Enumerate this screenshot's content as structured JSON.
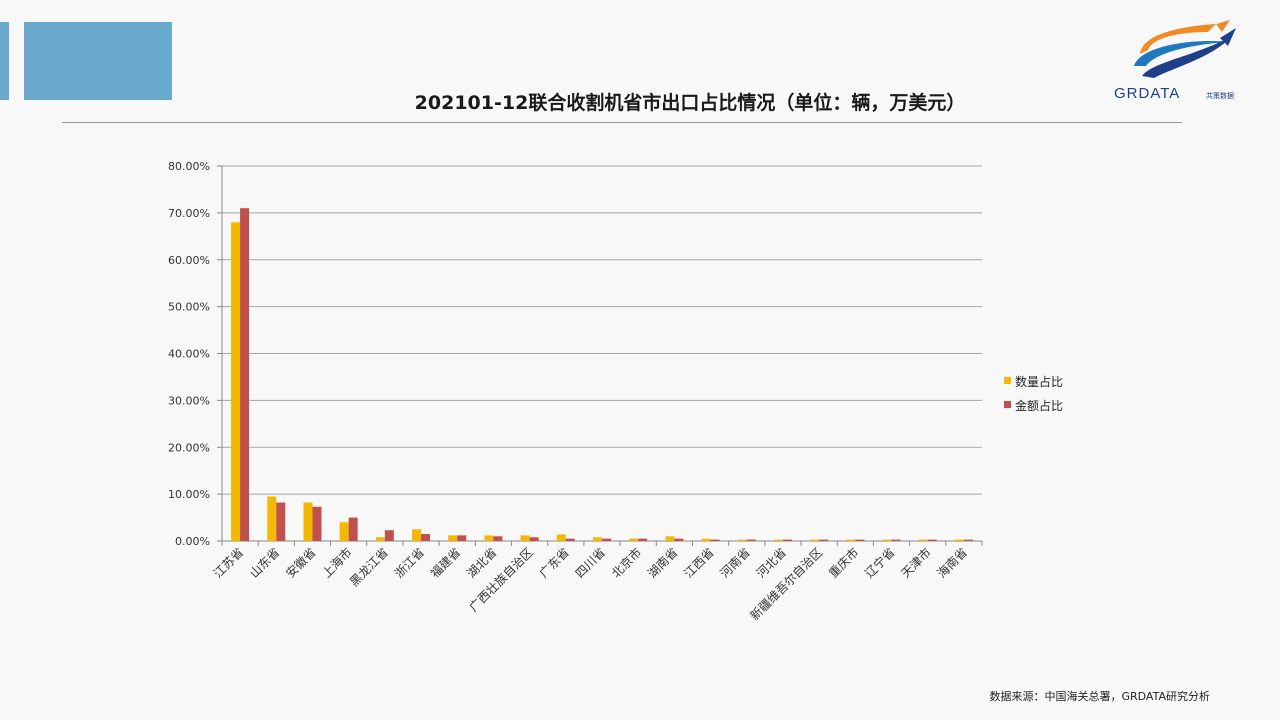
{
  "page": {
    "title": "202101-12联合收割机省市出口占比情况（单位：辆，万美元）",
    "source": "数据来源：中国海关总署，GRDATA研究分析",
    "logo": {
      "text": "GRDATA",
      "subtext": "共策数据",
      "icon": "arrow-swoosh-logo-icon"
    },
    "colors": {
      "accent": "#67a8cc",
      "series_qty": "#f5b800",
      "series_amt": "#c0504d"
    }
  },
  "chart_data": {
    "type": "bar",
    "title": "202101-12联合收割机省市出口占比情况（单位：辆，万美元）",
    "xlabel": "",
    "ylabel": "",
    "ylim": [
      0,
      80
    ],
    "yticks": [
      "0.00%",
      "10.00%",
      "20.00%",
      "30.00%",
      "40.00%",
      "50.00%",
      "60.00%",
      "70.00%",
      "80.00%"
    ],
    "grid": true,
    "legend_position": "right",
    "categories": [
      "江苏省",
      "山东省",
      "安徽省",
      "上海市",
      "黑龙江省",
      "浙江省",
      "福建省",
      "湖北省",
      "广西壮族自治区",
      "广东省",
      "四川省",
      "北京市",
      "湖南省",
      "江西省",
      "河南省",
      "河北省",
      "新疆维吾尔自治区",
      "重庆市",
      "辽宁省",
      "天津市",
      "海南省"
    ],
    "series": [
      {
        "name": "数量占比",
        "color": "#f5b800",
        "values": [
          68.0,
          9.5,
          8.2,
          4.0,
          0.8,
          2.5,
          1.2,
          1.2,
          1.2,
          1.4,
          0.8,
          0.5,
          1.0,
          0.5,
          0.3,
          0.3,
          0.3,
          0.3,
          0.3,
          0.3,
          0.3
        ]
      },
      {
        "name": "金额占比",
        "color": "#c0504d",
        "values": [
          71.0,
          8.2,
          7.3,
          5.0,
          2.3,
          1.5,
          1.2,
          1.0,
          0.8,
          0.5,
          0.5,
          0.5,
          0.5,
          0.3,
          0.3,
          0.3,
          0.3,
          0.3,
          0.3,
          0.3,
          0.3
        ]
      }
    ]
  }
}
